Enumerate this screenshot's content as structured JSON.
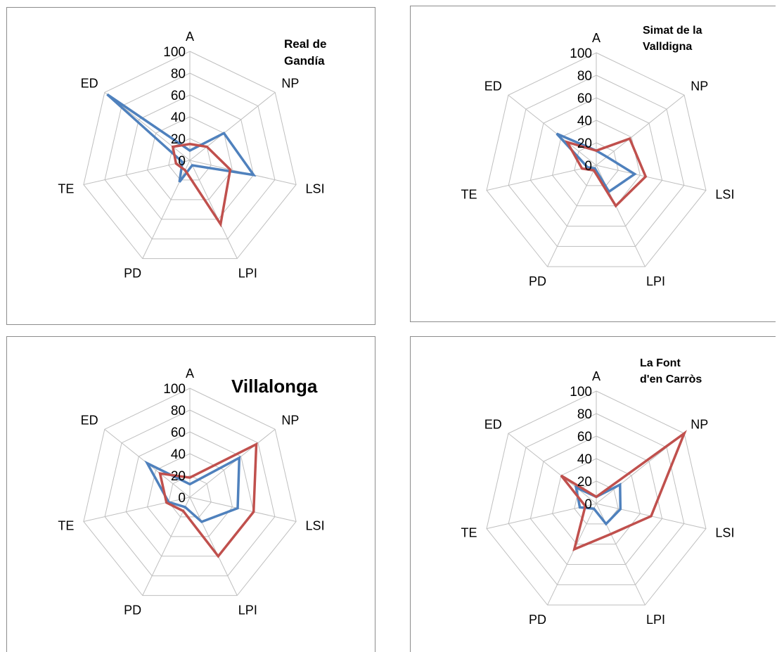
{
  "colors": {
    "series_blue": "#4f81bd",
    "series_red": "#c0504d",
    "grid": "#bfbfbf",
    "frame": "#8c8c8c"
  },
  "chart_data": [
    {
      "type": "radar",
      "title_lines": [
        "Real de",
        "Gandía"
      ],
      "axes": [
        "A",
        "NP",
        "LSI",
        "LPI",
        "PD",
        "TE",
        "ED"
      ],
      "ticks": [
        "0",
        "20",
        "40",
        "60",
        "80",
        "100"
      ],
      "rlim": [
        0,
        100
      ],
      "series": [
        {
          "color": "#4f81bd",
          "values": [
            9,
            40,
            60,
            5,
            22,
            7,
            97
          ]
        },
        {
          "color": "#c0504d",
          "values": [
            15,
            20,
            38,
            65,
            10,
            13,
            20
          ]
        }
      ]
    },
    {
      "type": "radar",
      "title_lines": [
        "Simat de la",
        "Valldigna"
      ],
      "axes": [
        "A",
        "NP",
        "LSI",
        "LPI",
        "PD",
        "TE",
        "ED"
      ],
      "ticks": [
        "0",
        "20",
        "40",
        "60",
        "80",
        "100"
      ],
      "rlim": [
        0,
        100
      ],
      "series": [
        {
          "color": "#4f81bd",
          "values": [
            13,
            12,
            35,
            26,
            3,
            8,
            45
          ]
        },
        {
          "color": "#c0504d",
          "values": [
            13,
            38,
            45,
            40,
            5,
            13,
            33
          ]
        }
      ]
    },
    {
      "type": "radar",
      "title_lines": [
        "Villalonga"
      ],
      "axes": [
        "A",
        "NP",
        "LSI",
        "LPI",
        "PD",
        "TE",
        "ED"
      ],
      "ticks": [
        "0",
        "20",
        "40",
        "60",
        "80",
        "100"
      ],
      "rlim": [
        0,
        100
      ],
      "series": [
        {
          "color": "#4f81bd",
          "values": [
            12,
            58,
            45,
            25,
            10,
            20,
            50
          ]
        },
        {
          "color": "#c0504d",
          "values": [
            18,
            78,
            60,
            60,
            14,
            22,
            35
          ]
        }
      ]
    },
    {
      "type": "radar",
      "title_lines": [
        "La Font",
        "d'en Carròs"
      ],
      "axes": [
        "A",
        "NP",
        "LSI",
        "LPI",
        "PD",
        "TE",
        "ED"
      ],
      "ticks": [
        "0",
        "20",
        "40",
        "60",
        "80",
        "100"
      ],
      "rlim": [
        0,
        100
      ],
      "series": [
        {
          "color": "#4f81bd",
          "values": [
            6,
            27,
            22,
            20,
            5,
            15,
            23
          ]
        },
        {
          "color": "#c0504d",
          "values": [
            6,
            100,
            50,
            30,
            45,
            10,
            40
          ]
        }
      ]
    }
  ]
}
